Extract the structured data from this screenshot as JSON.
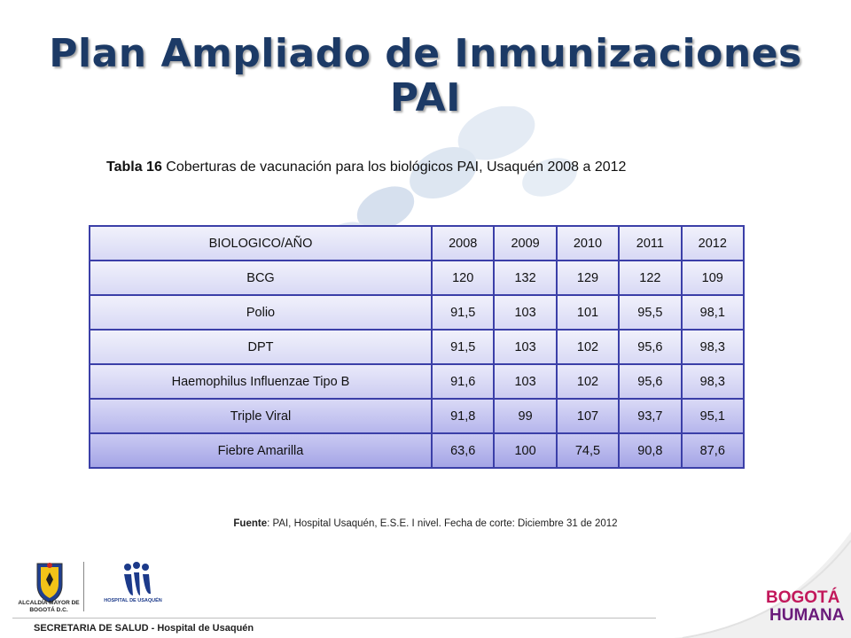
{
  "title": {
    "line1": "Plan Ampliado de Inmunizaciones",
    "line2": "PAI"
  },
  "caption": {
    "label": "Tabla 16",
    "text": " Coberturas de vacunación para los biológicos PAI, Usaquén 2008 a 2012"
  },
  "table": {
    "headers": [
      "BIOLOGICO/AÑO",
      "2008",
      "2009",
      "2010",
      "2011",
      "2012"
    ],
    "rows": [
      [
        "BCG",
        "120",
        "132",
        "129",
        "122",
        "109"
      ],
      [
        "Polio",
        "91,5",
        "103",
        "101",
        "95,5",
        "98,1"
      ],
      [
        "DPT",
        "91,5",
        "103",
        "102",
        "95,6",
        "98,3"
      ],
      [
        "Haemophilus Influenzae Tipo B",
        "91,6",
        "103",
        "102",
        "95,6",
        "98,3"
      ],
      [
        "Triple Viral",
        "91,8",
        "99",
        "107",
        "93,7",
        "95,1"
      ],
      [
        "Fiebre Amarilla",
        "63,6",
        "100",
        "74,5",
        "90,8",
        "87,6"
      ]
    ]
  },
  "source": {
    "label": "Fuente",
    "text": ": PAI, Hospital Usaquén, E.S.E. I nivel. Fecha de corte: Diciembre 31 de 2012"
  },
  "footer": {
    "text": "SECRETARIA DE SALUD - Hospital de Usaquén"
  },
  "logos": {
    "alcaldia": "ALCALDÍA MAYOR DE BOGOTÁ D.C.",
    "hospital": "HOSPITAL DE USAQUÉN",
    "bogota_top": "BOGOTÁ",
    "bogota_bottom": "HUMANA"
  },
  "colors": {
    "title": "#1c3a66",
    "table_border": "#3b3fa8",
    "humana_pink": "#c2185b",
    "humana_purple": "#6a1b7a"
  }
}
